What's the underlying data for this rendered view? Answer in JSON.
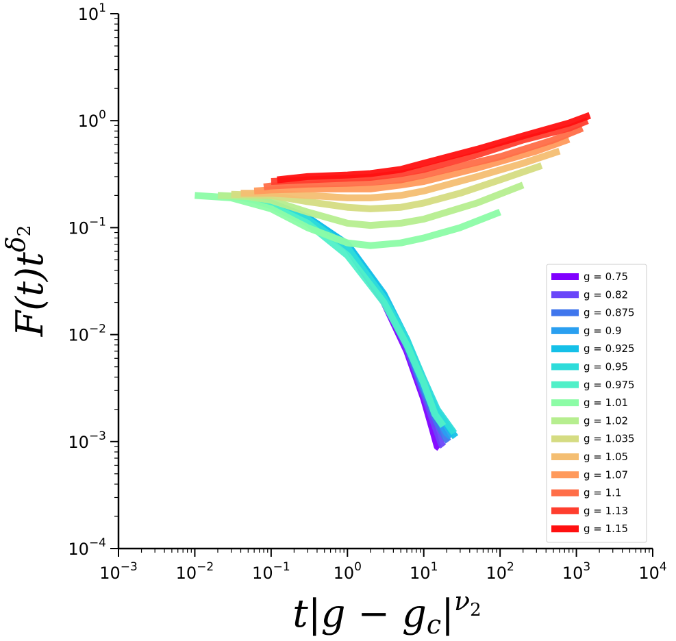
{
  "chart_data": {
    "type": "line",
    "title": "",
    "xlabel": "t|g − g_c|^ν2",
    "ylabel": "F(t) t^δ2",
    "x_scale": "log",
    "y_scale": "log",
    "xlim": [
      0.001,
      10000
    ],
    "ylim": [
      0.0001,
      10
    ],
    "grid": false,
    "legend_position": "lower-right",
    "x_ticks": [
      {
        "base": "10",
        "exp": "−3",
        "value": 0.001
      },
      {
        "base": "10",
        "exp": "−2",
        "value": 0.01
      },
      {
        "base": "10",
        "exp": "−1",
        "value": 0.1
      },
      {
        "base": "10",
        "exp": "0",
        "value": 1
      },
      {
        "base": "10",
        "exp": "1",
        "value": 10
      },
      {
        "base": "10",
        "exp": "2",
        "value": 100
      },
      {
        "base": "10",
        "exp": "3",
        "value": 1000
      },
      {
        "base": "10",
        "exp": "4",
        "value": 10000
      }
    ],
    "y_ticks": [
      {
        "base": "10",
        "exp": "−4",
        "value": 0.0001
      },
      {
        "base": "10",
        "exp": "−3",
        "value": 0.001
      },
      {
        "base": "10",
        "exp": "−2",
        "value": 0.01
      },
      {
        "base": "10",
        "exp": "−1",
        "value": 0.1
      },
      {
        "base": "10",
        "exp": "0",
        "value": 1
      },
      {
        "base": "10",
        "exp": "1",
        "value": 10
      }
    ],
    "series": [
      {
        "name": "g = 0.75",
        "color": "#8000ff",
        "x": [
          0.05,
          0.1,
          0.3,
          1,
          3,
          6,
          10,
          13,
          15,
          16
        ],
        "y": [
          0.2,
          0.17,
          0.12,
          0.065,
          0.02,
          0.007,
          0.0025,
          0.0013,
          0.0009,
          0.00087
        ]
      },
      {
        "name": "g = 0.82",
        "color": "#6a46f9",
        "x": [
          0.05,
          0.1,
          0.3,
          1,
          3,
          6,
          10,
          14,
          17,
          18
        ],
        "y": [
          0.2,
          0.17,
          0.12,
          0.066,
          0.021,
          0.0075,
          0.0028,
          0.0014,
          0.00095,
          0.0009
        ]
      },
      {
        "name": "g = 0.875",
        "color": "#3f76ed",
        "x": [
          0.05,
          0.1,
          0.3,
          1,
          3,
          6,
          10,
          15,
          19,
          21
        ],
        "y": [
          0.2,
          0.17,
          0.12,
          0.067,
          0.022,
          0.008,
          0.003,
          0.0015,
          0.0011,
          0.001
        ]
      },
      {
        "name": "g = 0.9",
        "color": "#2a9ff0",
        "x": [
          0.05,
          0.1,
          0.3,
          1,
          3,
          6,
          10,
          15,
          20,
          23
        ],
        "y": [
          0.2,
          0.17,
          0.125,
          0.07,
          0.023,
          0.0085,
          0.0032,
          0.0017,
          0.0012,
          0.0011
        ]
      },
      {
        "name": "g = 0.925",
        "color": "#15c0e8",
        "x": [
          0.04,
          0.1,
          0.3,
          1,
          3,
          6,
          10,
          15,
          22,
          26
        ],
        "y": [
          0.2,
          0.17,
          0.125,
          0.07,
          0.024,
          0.009,
          0.0035,
          0.0019,
          0.0013,
          0.0011
        ]
      },
      {
        "name": "g = 0.95",
        "color": "#2edcda",
        "x": [
          0.03,
          0.1,
          0.3,
          1,
          3,
          6,
          10,
          15,
          20,
          25
        ],
        "y": [
          0.2,
          0.17,
          0.12,
          0.065,
          0.022,
          0.009,
          0.0038,
          0.002,
          0.0015,
          0.0012
        ]
      },
      {
        "name": "g = 0.975",
        "color": "#50f0c8",
        "x": [
          0.02,
          0.05,
          0.1,
          0.3,
          1,
          3,
          6,
          10,
          14,
          18
        ],
        "y": [
          0.2,
          0.19,
          0.16,
          0.11,
          0.055,
          0.02,
          0.008,
          0.0035,
          0.0018,
          0.0014
        ]
      },
      {
        "name": "g = 1.01",
        "color": "#8cfca6",
        "x": [
          0.01,
          0.03,
          0.1,
          0.3,
          1,
          2,
          5,
          10,
          30,
          100
        ],
        "y": [
          0.2,
          0.19,
          0.15,
          0.1,
          0.072,
          0.068,
          0.072,
          0.08,
          0.1,
          0.14
        ]
      },
      {
        "name": "g = 1.02",
        "color": "#b6ee8f",
        "x": [
          0.02,
          0.05,
          0.1,
          0.3,
          1,
          2,
          5,
          10,
          50,
          200
        ],
        "y": [
          0.2,
          0.195,
          0.18,
          0.14,
          0.11,
          0.105,
          0.11,
          0.12,
          0.17,
          0.25
        ]
      },
      {
        "name": "g = 1.035",
        "color": "#d5dc82",
        "x": [
          0.03,
          0.1,
          0.3,
          1,
          2,
          5,
          10,
          30,
          100,
          350
        ],
        "y": [
          0.205,
          0.2,
          0.175,
          0.155,
          0.15,
          0.155,
          0.17,
          0.21,
          0.28,
          0.38
        ]
      },
      {
        "name": "g = 1.05",
        "color": "#f4be72",
        "x": [
          0.04,
          0.1,
          0.3,
          1,
          2,
          5,
          10,
          50,
          200,
          600
        ],
        "y": [
          0.21,
          0.21,
          0.2,
          0.19,
          0.19,
          0.2,
          0.22,
          0.3,
          0.4,
          0.52
        ]
      },
      {
        "name": "g = 1.07",
        "color": "#ff9a5c",
        "x": [
          0.06,
          0.1,
          0.3,
          1,
          2,
          5,
          10,
          50,
          300,
          800
        ],
        "y": [
          0.22,
          0.225,
          0.23,
          0.23,
          0.23,
          0.25,
          0.27,
          0.36,
          0.52,
          0.67
        ]
      },
      {
        "name": "g = 1.1",
        "color": "#ff6e48",
        "x": [
          0.08,
          0.1,
          0.3,
          1,
          2,
          5,
          10,
          100,
          500,
          1200
        ],
        "y": [
          0.24,
          0.245,
          0.255,
          0.26,
          0.265,
          0.28,
          0.31,
          0.46,
          0.66,
          0.85
        ]
      },
      {
        "name": "g = 1.13",
        "color": "#ff3e2e",
        "x": [
          0.1,
          0.3,
          1,
          2,
          5,
          10,
          50,
          200,
          800,
          1400
        ],
        "y": [
          0.27,
          0.28,
          0.29,
          0.295,
          0.32,
          0.35,
          0.48,
          0.66,
          0.85,
          1.0
        ]
      },
      {
        "name": "g = 1.15",
        "color": "#ff1010",
        "x": [
          0.12,
          0.3,
          1,
          2,
          5,
          10,
          50,
          200,
          800,
          1500
        ],
        "y": [
          0.28,
          0.3,
          0.31,
          0.32,
          0.35,
          0.4,
          0.54,
          0.72,
          0.95,
          1.12
        ]
      }
    ]
  }
}
